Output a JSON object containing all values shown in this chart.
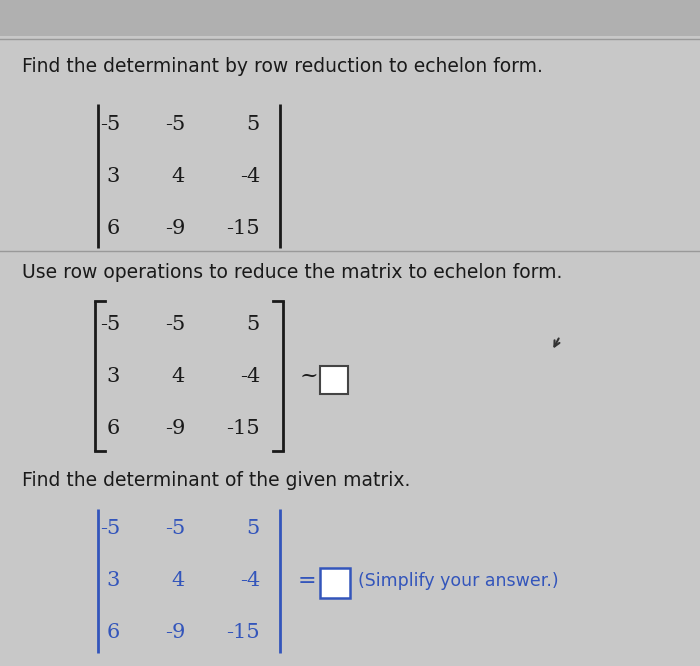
{
  "bg_top": "#c8c8c8",
  "bg_main": "#e8e6e2",
  "title1": "Find the determinant by row reduction to echelon form.",
  "title2": "Use row operations to reduce the matrix to echelon form.",
  "title3": "Find the determinant of the given matrix.",
  "col1": [
    "-5",
    "3",
    "6"
  ],
  "col2": [
    "-5",
    "4",
    "-9"
  ],
  "col3": [
    "5",
    "-4",
    "-15"
  ],
  "simplify_text": "(Simplify your answer.)",
  "text_color": "#1a1a1a",
  "blue_color": "#3355bb",
  "divider_color": "#999999"
}
